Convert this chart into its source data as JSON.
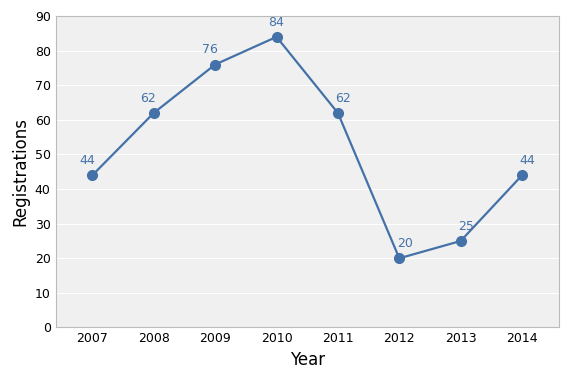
{
  "years": [
    2007,
    2008,
    2009,
    2010,
    2011,
    2012,
    2013,
    2014
  ],
  "values": [
    44,
    62,
    76,
    84,
    62,
    20,
    25,
    44
  ],
  "xlabel": "Year",
  "ylabel": "Registrations",
  "ylim": [
    0,
    90
  ],
  "yticks": [
    0,
    10,
    20,
    30,
    40,
    50,
    60,
    70,
    80,
    90
  ],
  "line_color": "#4472A8",
  "marker_color": "#4472A8",
  "label_color": "#4472A8",
  "background_color": "#ffffff",
  "plot_background": "#f0f0f0",
  "grid_color": "#ffffff",
  "label_fontsize": 9,
  "axis_label_fontsize": 12,
  "tick_fontsize": 9,
  "marker_size": 7,
  "line_width": 1.6
}
